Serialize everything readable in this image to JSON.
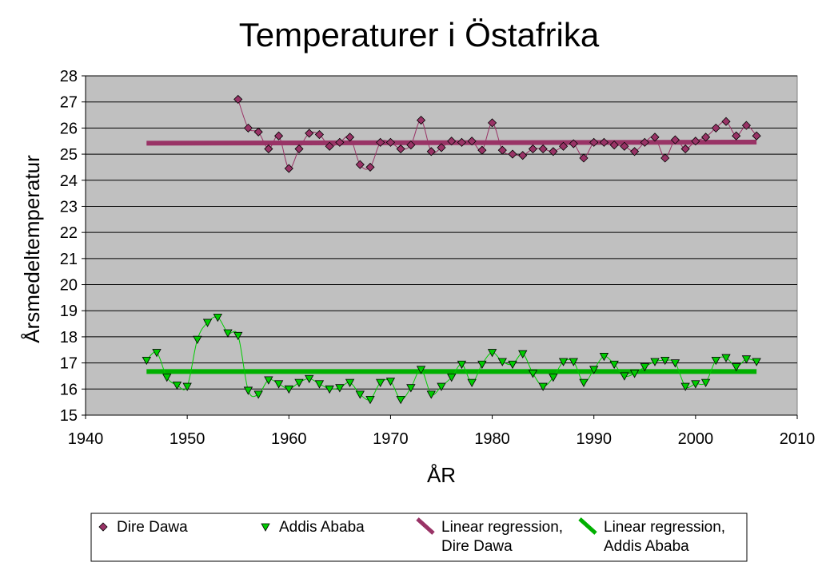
{
  "chart_data": {
    "type": "scatter",
    "title": "Temperaturer i Östafrika",
    "xlabel": "ÅR",
    "ylabel": "Årsmedeltemperatur",
    "xlim": [
      1940,
      2010
    ],
    "ylim": [
      15,
      28
    ],
    "xticks": [
      1940,
      1950,
      1960,
      1970,
      1980,
      1990,
      2000,
      2010
    ],
    "yticks": [
      15,
      16,
      17,
      18,
      19,
      20,
      21,
      22,
      23,
      24,
      25,
      26,
      27,
      28
    ],
    "grid": true,
    "legend_position": "bottom",
    "colors": {
      "plot_background": "#C0C0C0",
      "dire_dawa": "#993366",
      "dire_dawa_line": "#993366",
      "addis_ababa": "#00CC00",
      "addis_ababa_line": "#00B000"
    },
    "series": [
      {
        "name": "Dire Dawa",
        "marker": "diamond",
        "x": [
          1955,
          1956,
          1957,
          1958,
          1959,
          1960,
          1961,
          1962,
          1963,
          1964,
          1965,
          1966,
          1967,
          1968,
          1969,
          1970,
          1971,
          1972,
          1973,
          1974,
          1975,
          1976,
          1977,
          1978,
          1979,
          1980,
          1981,
          1982,
          1983,
          1984,
          1985,
          1986,
          1987,
          1988,
          1989,
          1990,
          1991,
          1992,
          1993,
          1994,
          1995,
          1996,
          1997,
          1998,
          1999,
          2000,
          2001,
          2002,
          2003,
          2004,
          2005,
          2006
        ],
        "y": [
          27.1,
          26.0,
          25.85,
          25.2,
          25.7,
          24.45,
          25.2,
          25.8,
          25.75,
          25.3,
          25.45,
          25.65,
          24.6,
          24.5,
          25.45,
          25.45,
          25.2,
          25.35,
          26.3,
          25.1,
          25.25,
          25.5,
          25.45,
          25.5,
          25.15,
          26.2,
          25.15,
          25.0,
          24.95,
          25.2,
          25.2,
          25.1,
          25.3,
          25.4,
          24.85,
          25.45,
          25.45,
          25.35,
          25.3,
          25.1,
          25.45,
          25.65,
          24.85,
          25.55,
          25.2,
          25.5,
          25.65,
          26.0,
          26.25,
          25.7,
          26.1,
          25.7
        ]
      },
      {
        "name": "Addis Ababa",
        "marker": "triangle-down",
        "x": [
          1946,
          1947,
          1948,
          1949,
          1950,
          1951,
          1952,
          1953,
          1954,
          1955,
          1956,
          1957,
          1958,
          1959,
          1960,
          1961,
          1962,
          1963,
          1964,
          1965,
          1966,
          1967,
          1968,
          1969,
          1970,
          1971,
          1972,
          1973,
          1974,
          1975,
          1976,
          1977,
          1978,
          1979,
          1980,
          1981,
          1982,
          1983,
          1984,
          1985,
          1986,
          1987,
          1988,
          1989,
          1990,
          1991,
          1992,
          1993,
          1994,
          1995,
          1996,
          1997,
          1998,
          1999,
          2000,
          2001,
          2002,
          2003,
          2004,
          2005,
          2006
        ],
        "y": [
          17.1,
          17.4,
          16.45,
          16.15,
          16.1,
          17.9,
          18.55,
          18.75,
          18.15,
          18.05,
          15.95,
          15.8,
          16.35,
          16.2,
          16.0,
          16.25,
          16.4,
          16.2,
          16.0,
          16.05,
          16.25,
          15.8,
          15.6,
          16.25,
          16.3,
          15.6,
          16.05,
          16.75,
          15.8,
          16.1,
          16.45,
          16.95,
          16.25,
          16.95,
          17.4,
          17.05,
          16.95,
          17.35,
          16.6,
          16.1,
          16.45,
          17.05,
          17.05,
          16.25,
          16.75,
          17.25,
          16.95,
          16.5,
          16.6,
          16.85,
          17.05,
          17.1,
          17.0,
          16.1,
          16.2,
          16.25,
          17.1,
          17.2,
          16.85,
          17.15,
          17.05
        ]
      }
    ],
    "regression": [
      {
        "name": "Linear regression, Dire Dawa",
        "x": [
          1946,
          2006
        ],
        "y": [
          25.42,
          25.46
        ]
      },
      {
        "name": "Linear regression, Addis Ababa",
        "x": [
          1946,
          2006
        ],
        "y": [
          16.67,
          16.67
        ]
      }
    ],
    "legend": [
      {
        "label_lines": [
          "Dire Dawa"
        ],
        "symbol": "diamond"
      },
      {
        "label_lines": [
          "Addis Ababa"
        ],
        "symbol": "triangle-down"
      },
      {
        "label_lines": [
          "Linear regression,",
          "Dire Dawa"
        ],
        "symbol": "line-dire"
      },
      {
        "label_lines": [
          "Linear regression,",
          "Addis Ababa"
        ],
        "symbol": "line-addis"
      }
    ]
  }
}
